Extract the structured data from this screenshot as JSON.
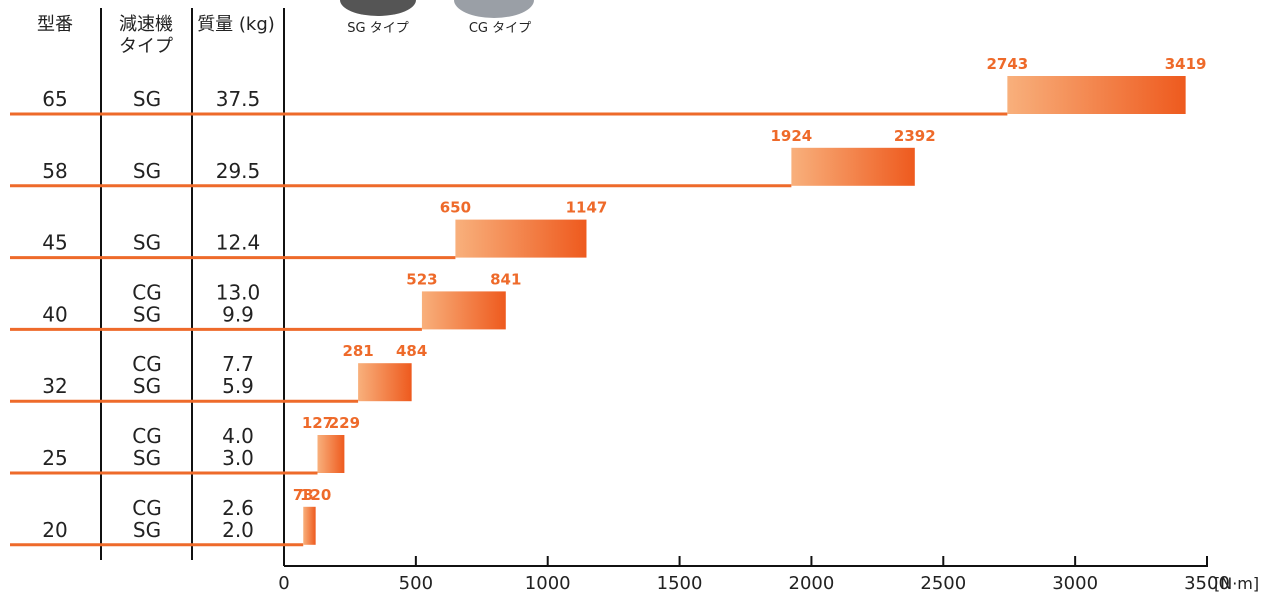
{
  "chart_data": {
    "type": "range_bar",
    "categories": [
      "65",
      "58",
      "45",
      "40",
      "32",
      "25",
      "20"
    ],
    "low": [
      2743,
      1924,
      650,
      523,
      281,
      127,
      73
    ],
    "high": [
      3419,
      2392,
      1147,
      841,
      484,
      229,
      120
    ],
    "xlim": [
      0,
      3500
    ],
    "xticks": [
      0,
      500,
      1000,
      1500,
      2000,
      2500,
      3000,
      3500
    ],
    "x_unit": "[N·m]",
    "color_start": "#f8b07c",
    "color_end": "#ee5a1e",
    "label_color": "#ee6a2a",
    "line_color": "#ee6a2a"
  },
  "table": {
    "headers": [
      "型番",
      [
        "減速機",
        "タイプ"
      ],
      "質量 (kg)"
    ],
    "types": [
      [
        "SG"
      ],
      [
        "SG"
      ],
      [
        "SG"
      ],
      [
        "CG",
        "SG"
      ],
      [
        "CG",
        "SG"
      ],
      [
        "CG",
        "SG"
      ],
      [
        "CG",
        "SG"
      ]
    ],
    "masses": [
      [
        "37.5"
      ],
      [
        "29.5"
      ],
      [
        "12.4"
      ],
      [
        "13.0",
        "9.9"
      ],
      [
        "7.7",
        "5.9"
      ],
      [
        "4.0",
        "3.0"
      ],
      [
        "2.6",
        "2.0"
      ]
    ]
  },
  "images": [
    "SG タイプ",
    "CG タイプ"
  ]
}
